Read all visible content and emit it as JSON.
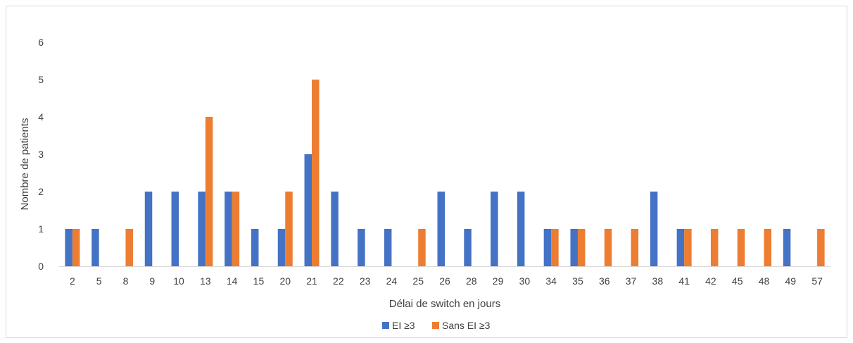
{
  "chart_data": {
    "type": "bar",
    "title": "",
    "xlabel": "Délai de switch en jours",
    "ylabel": "Nombre de patients",
    "ylim": [
      0,
      6
    ],
    "yticks": [
      0,
      1,
      2,
      3,
      4,
      5,
      6
    ],
    "grid": false,
    "legend_position": "bottom",
    "categories": [
      "2",
      "5",
      "8",
      "9",
      "10",
      "13",
      "14",
      "15",
      "20",
      "21",
      "22",
      "23",
      "24",
      "25",
      "26",
      "28",
      "29",
      "30",
      "34",
      "35",
      "36",
      "37",
      "38",
      "41",
      "42",
      "45",
      "48",
      "49",
      "57"
    ],
    "series": [
      {
        "name": "EI ≥3",
        "color": "#4472c4",
        "values": [
          1,
          1,
          0,
          2,
          2,
          2,
          2,
          1,
          1,
          3,
          2,
          1,
          1,
          0,
          2,
          1,
          2,
          2,
          1,
          1,
          0,
          0,
          2,
          1,
          0,
          0,
          0,
          1,
          0
        ]
      },
      {
        "name": "Sans EI ≥3",
        "color": "#ed7d31",
        "values": [
          1,
          0,
          1,
          0,
          0,
          4,
          2,
          0,
          2,
          5,
          0,
          0,
          0,
          1,
          0,
          0,
          0,
          0,
          1,
          1,
          1,
          1,
          0,
          1,
          1,
          1,
          1,
          0,
          1
        ]
      }
    ]
  }
}
